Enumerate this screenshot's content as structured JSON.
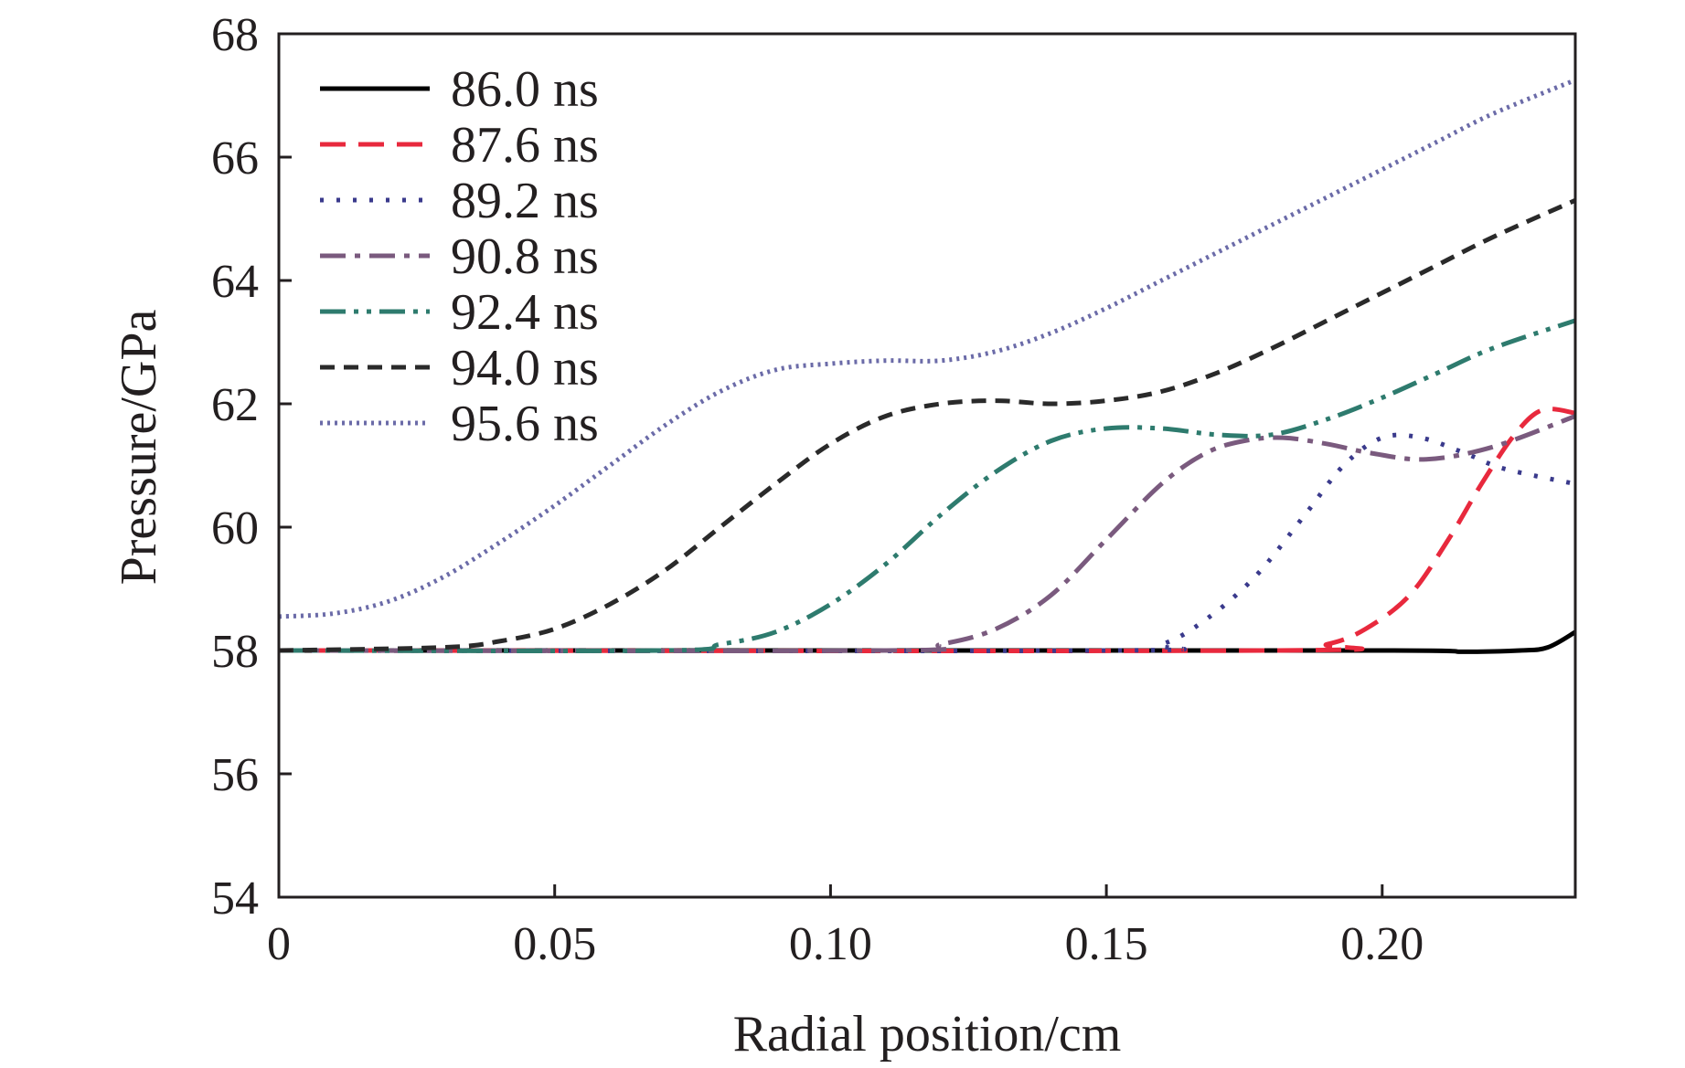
{
  "chart_data": {
    "type": "line",
    "title": "",
    "xlabel": "Radial position/cm",
    "ylabel": "Pressure/GPa",
    "xlim": [
      0,
      0.235
    ],
    "ylim": [
      54,
      68
    ],
    "x_ticks": [
      0,
      0.05,
      0.1,
      0.15,
      0.2
    ],
    "x_tick_labels": [
      "0",
      "0.05",
      "0.10",
      "0.15",
      "0.20"
    ],
    "y_ticks": [
      54,
      56,
      58,
      60,
      62,
      64,
      66,
      68
    ],
    "y_tick_labels": [
      "54",
      "56",
      "58",
      "60",
      "62",
      "64",
      "66",
      "68"
    ],
    "grid": false,
    "legend_position": "top-left",
    "series": [
      {
        "name": "86.0 ns",
        "color": "#000000",
        "dash": "solid",
        "points": [
          [
            0,
            58.0
          ],
          [
            0.1,
            58.0
          ],
          [
            0.2,
            58.0
          ],
          [
            0.215,
            57.98
          ],
          [
            0.225,
            58.0
          ],
          [
            0.23,
            58.05
          ],
          [
            0.235,
            58.3
          ]
        ]
      },
      {
        "name": "87.6 ns",
        "color": "#e8293d",
        "dash": "dashed",
        "points": [
          [
            0,
            58.0
          ],
          [
            0.18,
            58.0
          ],
          [
            0.19,
            58.1
          ],
          [
            0.197,
            58.35
          ],
          [
            0.205,
            58.9
          ],
          [
            0.212,
            59.8
          ],
          [
            0.218,
            60.7
          ],
          [
            0.224,
            61.5
          ],
          [
            0.229,
            61.9
          ],
          [
            0.235,
            61.85
          ]
        ]
      },
      {
        "name": "89.2 ns",
        "color": "#3a3a8c",
        "dash": "dotted",
        "points": [
          [
            0,
            58.0
          ],
          [
            0.15,
            58.0
          ],
          [
            0.16,
            58.1
          ],
          [
            0.168,
            58.5
          ],
          [
            0.177,
            59.2
          ],
          [
            0.186,
            60.2
          ],
          [
            0.193,
            61.0
          ],
          [
            0.2,
            61.45
          ],
          [
            0.207,
            61.45
          ],
          [
            0.215,
            61.2
          ],
          [
            0.222,
            60.95
          ],
          [
            0.235,
            60.7
          ]
        ]
      },
      {
        "name": "90.8 ns",
        "color": "#7a5a7e",
        "dash": "dashdot",
        "points": [
          [
            0,
            58.0
          ],
          [
            0.11,
            58.0
          ],
          [
            0.12,
            58.1
          ],
          [
            0.13,
            58.35
          ],
          [
            0.14,
            58.9
          ],
          [
            0.15,
            59.8
          ],
          [
            0.16,
            60.7
          ],
          [
            0.168,
            61.2
          ],
          [
            0.175,
            61.4
          ],
          [
            0.182,
            61.45
          ],
          [
            0.19,
            61.35
          ],
          [
            0.198,
            61.2
          ],
          [
            0.208,
            61.1
          ],
          [
            0.22,
            61.3
          ],
          [
            0.235,
            61.8
          ]
        ]
      },
      {
        "name": "92.4 ns",
        "color": "#2e7b6e",
        "dash": "dashdotdot",
        "points": [
          [
            0,
            58.0
          ],
          [
            0.07,
            58.0
          ],
          [
            0.08,
            58.1
          ],
          [
            0.09,
            58.3
          ],
          [
            0.1,
            58.75
          ],
          [
            0.11,
            59.4
          ],
          [
            0.12,
            60.2
          ],
          [
            0.13,
            60.9
          ],
          [
            0.14,
            61.4
          ],
          [
            0.15,
            61.6
          ],
          [
            0.16,
            61.6
          ],
          [
            0.17,
            61.5
          ],
          [
            0.18,
            61.5
          ],
          [
            0.19,
            61.75
          ],
          [
            0.2,
            62.1
          ],
          [
            0.21,
            62.5
          ],
          [
            0.22,
            62.9
          ],
          [
            0.235,
            63.35
          ]
        ]
      },
      {
        "name": "94.0 ns",
        "color": "#2a2a2a",
        "dash": "shortdash",
        "points": [
          [
            0,
            58.0
          ],
          [
            0.03,
            58.05
          ],
          [
            0.04,
            58.15
          ],
          [
            0.05,
            58.35
          ],
          [
            0.06,
            58.75
          ],
          [
            0.07,
            59.3
          ],
          [
            0.08,
            60.0
          ],
          [
            0.09,
            60.7
          ],
          [
            0.1,
            61.35
          ],
          [
            0.11,
            61.8
          ],
          [
            0.12,
            62.0
          ],
          [
            0.13,
            62.05
          ],
          [
            0.14,
            62.0
          ],
          [
            0.15,
            62.05
          ],
          [
            0.16,
            62.2
          ],
          [
            0.17,
            62.5
          ],
          [
            0.18,
            62.9
          ],
          [
            0.19,
            63.35
          ],
          [
            0.2,
            63.8
          ],
          [
            0.21,
            64.25
          ],
          [
            0.22,
            64.7
          ],
          [
            0.235,
            65.3
          ]
        ]
      },
      {
        "name": "95.6 ns",
        "color": "#6b6ba8",
        "dash": "densedot",
        "points": [
          [
            0,
            58.55
          ],
          [
            0.01,
            58.6
          ],
          [
            0.02,
            58.8
          ],
          [
            0.03,
            59.2
          ],
          [
            0.04,
            59.75
          ],
          [
            0.05,
            60.35
          ],
          [
            0.06,
            61.0
          ],
          [
            0.07,
            61.65
          ],
          [
            0.08,
            62.2
          ],
          [
            0.09,
            62.55
          ],
          [
            0.1,
            62.65
          ],
          [
            0.11,
            62.7
          ],
          [
            0.12,
            62.7
          ],
          [
            0.13,
            62.85
          ],
          [
            0.14,
            63.15
          ],
          [
            0.15,
            63.55
          ],
          [
            0.16,
            64.0
          ],
          [
            0.17,
            64.45
          ],
          [
            0.18,
            64.9
          ],
          [
            0.19,
            65.35
          ],
          [
            0.2,
            65.8
          ],
          [
            0.21,
            66.25
          ],
          [
            0.22,
            66.7
          ],
          [
            0.235,
            67.25
          ]
        ]
      }
    ]
  }
}
